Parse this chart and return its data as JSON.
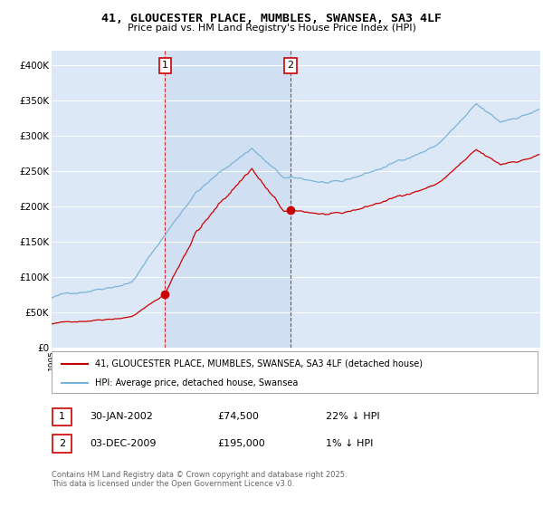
{
  "title": "41, GLOUCESTER PLACE, MUMBLES, SWANSEA, SA3 4LF",
  "subtitle": "Price paid vs. HM Land Registry's House Price Index (HPI)",
  "ylabel_ticks": [
    "£0",
    "£50K",
    "£100K",
    "£150K",
    "£200K",
    "£250K",
    "£300K",
    "£350K",
    "£400K"
  ],
  "ytick_values": [
    0,
    50000,
    100000,
    150000,
    200000,
    250000,
    300000,
    350000,
    400000
  ],
  "ylim": [
    0,
    420000
  ],
  "xlim_start": 1995.0,
  "xlim_end": 2025.5,
  "purchase1_date": 2002.08,
  "purchase1_price": 74500,
  "purchase2_date": 2009.92,
  "purchase2_price": 195000,
  "hpi_color": "#7ab4d8",
  "price_color": "#cc0000",
  "marker_color": "#cc0000",
  "vline_color": "#cc0000",
  "span_color": "#dce8f5",
  "background_color": "#dce8f5",
  "grid_color": "#ffffff",
  "legend_label_price": "41, GLOUCESTER PLACE, MUMBLES, SWANSEA, SA3 4LF (detached house)",
  "legend_label_hpi": "HPI: Average price, detached house, Swansea",
  "annotation1_label": "1",
  "annotation2_label": "2",
  "note1_date": "30-JAN-2002",
  "note1_price": "£74,500",
  "note1_hpi": "22% ↓ HPI",
  "note2_date": "03-DEC-2009",
  "note2_price": "£195,000",
  "note2_hpi": "1% ↓ HPI",
  "footer": "Contains HM Land Registry data © Crown copyright and database right 2025.\nThis data is licensed under the Open Government Licence v3.0."
}
